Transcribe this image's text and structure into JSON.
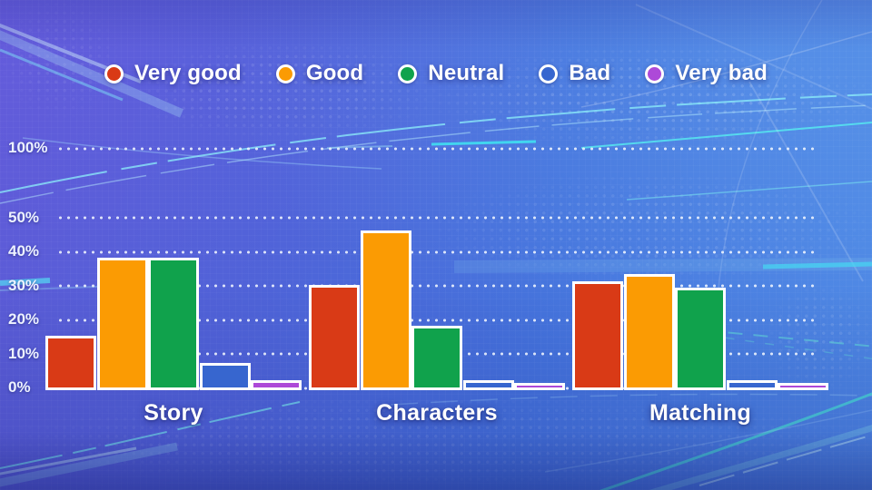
{
  "legend": {
    "items": [
      {
        "label": "Very good",
        "color": "#d93a16"
      },
      {
        "label": "Good",
        "color": "#fb9b03"
      },
      {
        "label": "Neutral",
        "color": "#10a24c"
      },
      {
        "label": "Bad",
        "color": "#3766cf"
      },
      {
        "label": "Very bad",
        "color": "#ad49d8"
      }
    ]
  },
  "chart_data": {
    "type": "bar",
    "title": "",
    "categories": [
      "Story",
      "Characters",
      "Matching"
    ],
    "series": [
      {
        "name": "Very good",
        "color": "#d93a16",
        "values": [
          15,
          30,
          31
        ]
      },
      {
        "name": "Good",
        "color": "#fb9b03",
        "values": [
          38,
          46,
          33
        ]
      },
      {
        "name": "Neutral",
        "color": "#10a24c",
        "values": [
          38,
          18,
          29
        ]
      },
      {
        "name": "Bad",
        "color": "#3766cf",
        "values": [
          7,
          2,
          2
        ]
      },
      {
        "name": "Very bad",
        "color": "#ad49d8",
        "values": [
          2,
          1,
          1
        ]
      }
    ],
    "y_ticks": [
      {
        "label": "0%",
        "value": 0
      },
      {
        "label": "10%",
        "value": 10
      },
      {
        "label": "20%",
        "value": 20
      },
      {
        "label": "30%",
        "value": 30
      },
      {
        "label": "40%",
        "value": 40
      },
      {
        "label": "50%",
        "value": 50
      },
      {
        "label": "100%",
        "value": 100
      }
    ],
    "ylim": [
      0,
      100
    ],
    "axis_break": "scale compressed between 50% and 100%",
    "grid": "dotted horizontal lines",
    "legend_position": "top-center"
  },
  "colors": {
    "background_left": "#5d5ad6",
    "background_right": "#4d87e4",
    "grid_dot": "#f5f9ff",
    "text": "#ffffff"
  }
}
